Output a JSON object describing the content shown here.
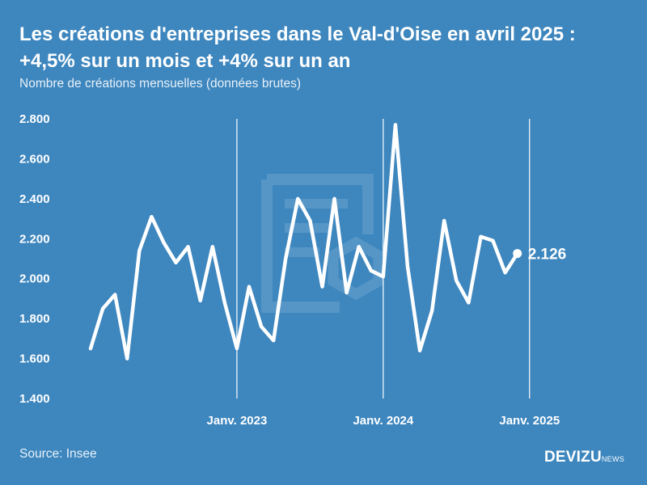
{
  "header": {
    "title": "Les créations d'entreprises dans le Val-d'Oise en avril 2025 : +4,5% sur un mois et +4% sur un an",
    "subtitle": "Nombre de créations mensuelles (données brutes)"
  },
  "footer": {
    "source": "Source: Insee",
    "brand": "DEVIZU",
    "brand_suffix": "NEWS"
  },
  "chart_data": {
    "type": "line",
    "ylabel": "Nombre de créations mensuelles (données brutes)",
    "ylim": [
      1400,
      2800
    ],
    "y_ticks": [
      1400,
      1600,
      1800,
      2000,
      2200,
      2400,
      2600,
      2800
    ],
    "y_tick_labels": [
      "1.400",
      "1.600",
      "1.800",
      "2.000",
      "2.200",
      "2.400",
      "2.600",
      "2.800"
    ],
    "x_range": [
      "2022-01",
      "2025-04"
    ],
    "x_ticks": [
      {
        "month": "2023-01",
        "label": "Janv. 2023"
      },
      {
        "month": "2024-01",
        "label": "Janv. 2024"
      },
      {
        "month": "2025-01",
        "label": "Janv. 2025"
      }
    ],
    "grid": "vertical lines at january of each year",
    "end_label": "2.126",
    "series": [
      {
        "color": "#ffffff",
        "points": [
          {
            "x": "2022-01",
            "y": 1650
          },
          {
            "x": "2022-02",
            "y": 1850
          },
          {
            "x": "2022-03",
            "y": 1920
          },
          {
            "x": "2022-04",
            "y": 1600
          },
          {
            "x": "2022-05",
            "y": 2140
          },
          {
            "x": "2022-06",
            "y": 2310
          },
          {
            "x": "2022-07",
            "y": 2180
          },
          {
            "x": "2022-08",
            "y": 2080
          },
          {
            "x": "2022-09",
            "y": 2160
          },
          {
            "x": "2022-10",
            "y": 1890
          },
          {
            "x": "2022-11",
            "y": 2160
          },
          {
            "x": "2022-12",
            "y": 1880
          },
          {
            "x": "2023-01",
            "y": 1650
          },
          {
            "x": "2023-02",
            "y": 1960
          },
          {
            "x": "2023-03",
            "y": 1760
          },
          {
            "x": "2023-04",
            "y": 1690
          },
          {
            "x": "2023-05",
            "y": 2100
          },
          {
            "x": "2023-06",
            "y": 2400
          },
          {
            "x": "2023-07",
            "y": 2290
          },
          {
            "x": "2023-08",
            "y": 1960
          },
          {
            "x": "2023-09",
            "y": 2400
          },
          {
            "x": "2023-10",
            "y": 1930
          },
          {
            "x": "2023-11",
            "y": 2160
          },
          {
            "x": "2023-12",
            "y": 2040
          },
          {
            "x": "2024-01",
            "y": 2010
          },
          {
            "x": "2024-02",
            "y": 2770
          },
          {
            "x": "2024-03",
            "y": 2060
          },
          {
            "x": "2024-04",
            "y": 1640
          },
          {
            "x": "2024-05",
            "y": 1840
          },
          {
            "x": "2024-06",
            "y": 2290
          },
          {
            "x": "2024-07",
            "y": 1990
          },
          {
            "x": "2024-08",
            "y": 1880
          },
          {
            "x": "2024-09",
            "y": 2210
          },
          {
            "x": "2024-10",
            "y": 2190
          },
          {
            "x": "2024-11",
            "y": 2030
          },
          {
            "x": "2024-12",
            "y": 2126
          }
        ]
      }
    ]
  }
}
